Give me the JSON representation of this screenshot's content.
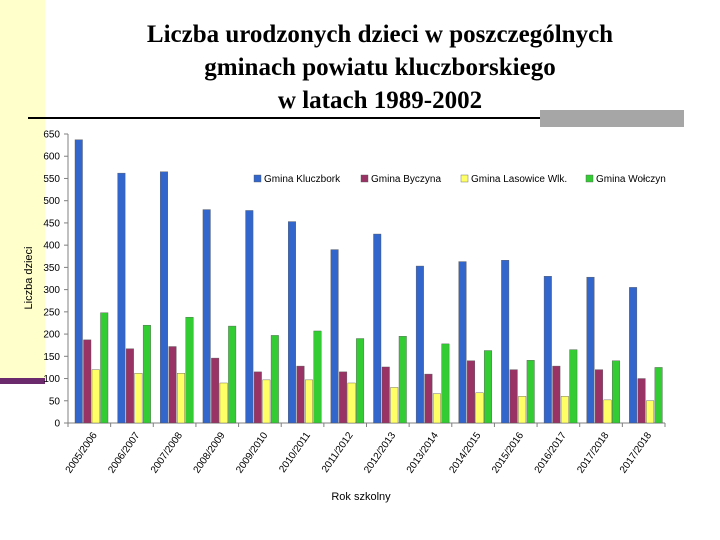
{
  "title_lines": [
    "Liczba urodzonych dzieci w poszczególnych",
    "gminach powiatu kluczborskiego",
    "w latach 1989-2002"
  ],
  "chart_data": {
    "type": "bar",
    "title": "Liczba urodzonych dzieci w poszczególnych gminach powiatu kluczborskiego w latach 1989-2002",
    "xlabel": "Rok szkolny",
    "ylabel": "Liczba dzieci",
    "ylim": [
      0,
      650
    ],
    "yticks": [
      0,
      50,
      100,
      150,
      200,
      250,
      300,
      350,
      400,
      450,
      500,
      550,
      600,
      650
    ],
    "legend_position": "top-right",
    "categories": [
      "2005/2006",
      "2006/2007",
      "2007/2008",
      "2008/2009",
      "2009/2010",
      "2010/2011",
      "2011/2012",
      "2012/2013",
      "2013/2014",
      "2014/2015",
      "2015/2016",
      "2016/2017",
      "2017/2018",
      "2017/2018"
    ],
    "series": [
      {
        "name": "Gmina Kluczbork",
        "color": "#3366cc",
        "values": [
          637,
          562,
          565,
          480,
          478,
          453,
          390,
          425,
          353,
          363,
          366,
          330,
          328,
          305
        ]
      },
      {
        "name": "Gmina Byczyna",
        "color": "#993366",
        "values": [
          187,
          167,
          172,
          146,
          115,
          128,
          115,
          126,
          110,
          140,
          120,
          128,
          120,
          100
        ]
      },
      {
        "name": "Gmina Lasowice Wlk.",
        "color": "#ffff66",
        "values": [
          120,
          112,
          112,
          90,
          97,
          97,
          90,
          80,
          66,
          68,
          60,
          60,
          52,
          50
        ]
      },
      {
        "name": "Gmina Wołczyn",
        "color": "#33cc33",
        "values": [
          248,
          220,
          238,
          218,
          197,
          207,
          190,
          195,
          178,
          163,
          141,
          165,
          140,
          125
        ]
      }
    ]
  }
}
